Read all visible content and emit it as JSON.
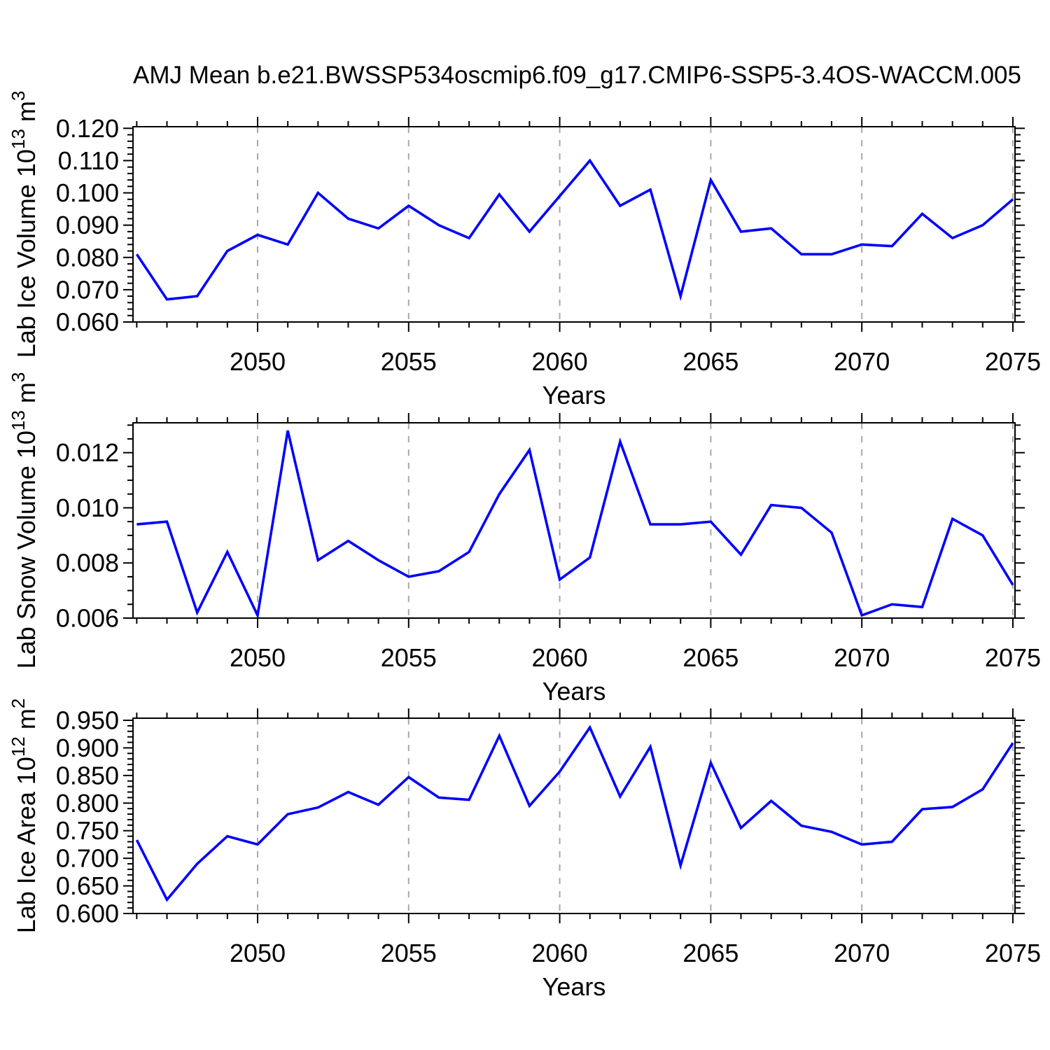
{
  "title": "AMJ Mean b.e21.BWSSP534oscmip6.f09_g17.CMIP6-SSP5-3.4OS-WACCM.005",
  "colors": {
    "series": "#0000ff",
    "grid": "#a8a8a8",
    "axis": "#000000",
    "background": "#ffffff"
  },
  "years": [
    2046,
    2047,
    2048,
    2049,
    2050,
    2051,
    2052,
    2053,
    2054,
    2055,
    2056,
    2057,
    2058,
    2059,
    2060,
    2061,
    2062,
    2063,
    2064,
    2065,
    2066,
    2067,
    2068,
    2069,
    2070,
    2071,
    2072,
    2073,
    2074,
    2075
  ],
  "xaxis": {
    "xlim": [
      2045.876,
      2075.07
    ],
    "xticks": [
      2050,
      2055,
      2060,
      2065,
      2070,
      2075
    ],
    "xtick_labels": [
      "2050",
      "2055",
      "2060",
      "2065",
      "2070",
      "2075"
    ],
    "xminor_step": 1,
    "grid_at": [
      2050,
      2055,
      2060,
      2065,
      2070,
      2075
    ]
  },
  "chart_data": [
    {
      "type": "line",
      "name": "lab-ice-volume",
      "title": "AMJ Mean b.e21.BWSSP534oscmip6.f09_g17.CMIP6-SSP5-3.4OS-WACCM.005",
      "xlabel": "Years",
      "ylabel_plain": "Lab Ice Volume 10^13 m^3",
      "ylabel": {
        "text": "Lab Ice Volume 10",
        "sup": "13",
        "unit": " m",
        "unit_sup": "3"
      },
      "ylim": [
        0.06,
        0.1205
      ],
      "yticks": [
        0.06,
        0.07,
        0.08,
        0.09,
        0.1,
        0.11,
        0.12
      ],
      "ytick_labels": [
        "0.060",
        "0.070",
        "0.080",
        "0.090",
        "0.100",
        "0.110",
        "0.120"
      ],
      "yminor_step": 0.002,
      "x": [
        2046,
        2047,
        2048,
        2049,
        2050,
        2051,
        2052,
        2053,
        2054,
        2055,
        2056,
        2057,
        2058,
        2059,
        2060,
        2061,
        2062,
        2063,
        2064,
        2065,
        2066,
        2067,
        2068,
        2069,
        2070,
        2071,
        2072,
        2073,
        2074,
        2075
      ],
      "values": [
        0.081,
        0.067,
        0.068,
        0.082,
        0.087,
        0.084,
        0.1,
        0.092,
        0.089,
        0.096,
        0.09,
        0.086,
        0.0995,
        0.088,
        0.099,
        0.11,
        0.096,
        0.101,
        0.068,
        0.104,
        0.088,
        0.089,
        0.081,
        0.081,
        0.084,
        0.0835,
        0.0935,
        0.086,
        0.09,
        0.098
      ]
    },
    {
      "type": "line",
      "name": "lab-snow-volume",
      "title": "",
      "xlabel": "Years",
      "ylabel_plain": "Lab Snow Volume 10^13 m^3",
      "ylabel": {
        "text": "Lab Snow Volume 10",
        "sup": "13",
        "unit": " m",
        "unit_sup": "3"
      },
      "ylim": [
        0.006,
        0.013084
      ],
      "yticks": [
        0.006,
        0.008,
        0.01,
        0.012
      ],
      "ytick_labels": [
        "0.006",
        "0.008",
        "0.010",
        "0.012"
      ],
      "yminor_step": 0.0005,
      "x": [
        2046,
        2047,
        2048,
        2049,
        2050,
        2051,
        2052,
        2053,
        2054,
        2055,
        2056,
        2057,
        2058,
        2059,
        2060,
        2061,
        2062,
        2063,
        2064,
        2065,
        2066,
        2067,
        2068,
        2069,
        2070,
        2071,
        2072,
        2073,
        2074,
        2075
      ],
      "values": [
        0.0094,
        0.0095,
        0.0062,
        0.0084,
        0.0061,
        0.0128,
        0.0081,
        0.0088,
        0.0081,
        0.0075,
        0.0077,
        0.0084,
        0.0105,
        0.0121,
        0.0074,
        0.0082,
        0.0124,
        0.0094,
        0.0094,
        0.0095,
        0.0083,
        0.0101,
        0.01,
        0.0091,
        0.0061,
        0.0065,
        0.0064,
        0.0096,
        0.009,
        0.0072
      ]
    },
    {
      "type": "line",
      "name": "lab-ice-area",
      "title": "",
      "xlabel": "Years",
      "ylabel_plain": "Lab Ice Area 10^12 m^2",
      "ylabel": {
        "text": "Lab Ice Area 10",
        "sup": "12",
        "unit": " m",
        "unit_sup": "2"
      },
      "ylim": [
        0.6,
        0.9538
      ],
      "yticks": [
        0.6,
        0.65,
        0.7,
        0.75,
        0.8,
        0.85,
        0.9,
        0.95
      ],
      "ytick_labels": [
        "0.600",
        "0.650",
        "0.700",
        "0.750",
        "0.800",
        "0.850",
        "0.900",
        "0.950"
      ],
      "yminor_step": 0.01,
      "x": [
        2046,
        2047,
        2048,
        2049,
        2050,
        2051,
        2052,
        2053,
        2054,
        2055,
        2056,
        2057,
        2058,
        2059,
        2060,
        2061,
        2062,
        2063,
        2064,
        2065,
        2066,
        2067,
        2068,
        2069,
        2070,
        2071,
        2072,
        2073,
        2074,
        2075
      ],
      "values": [
        0.733,
        0.625,
        0.69,
        0.74,
        0.725,
        0.78,
        0.792,
        0.82,
        0.797,
        0.847,
        0.81,
        0.806,
        0.922,
        0.795,
        0.857,
        0.937,
        0.812,
        0.902,
        0.687,
        0.873,
        0.755,
        0.804,
        0.759,
        0.748,
        0.725,
        0.73,
        0.789,
        0.793,
        0.825,
        0.909
      ]
    }
  ]
}
